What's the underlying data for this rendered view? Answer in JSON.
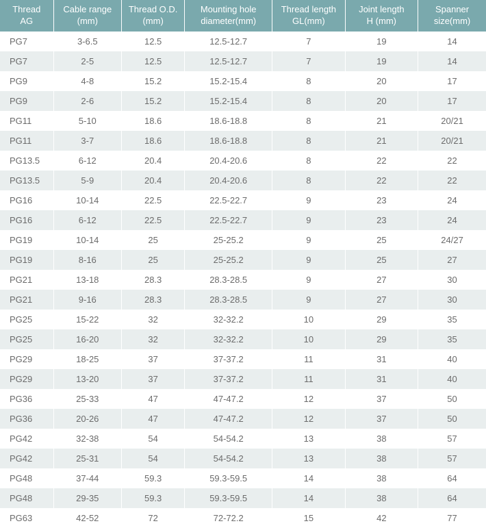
{
  "table": {
    "type": "table",
    "header_bg": "#7aa9ad",
    "header_fg": "#ffffff",
    "row_odd_bg": "#ffffff",
    "row_even_bg": "#e9eeee",
    "cell_fg": "#6b6b6b",
    "font_family": "Arial, Helvetica, sans-serif",
    "font_size_pt": 10,
    "columns": [
      {
        "line1": "Thread",
        "line2": "AG",
        "width_pct": 11,
        "align": "left"
      },
      {
        "line1": "Cable range",
        "line2": "(mm)",
        "width_pct": 14,
        "align": "center"
      },
      {
        "line1": "Thread O.D.",
        "line2": "(mm)",
        "width_pct": 13,
        "align": "center"
      },
      {
        "line1": "Mounting hole",
        "line2": "diameter(mm)",
        "width_pct": 18,
        "align": "center"
      },
      {
        "line1": "Thread length",
        "line2": "GL(mm)",
        "width_pct": 15,
        "align": "center"
      },
      {
        "line1": "Joint length",
        "line2": "H (mm)",
        "width_pct": 15,
        "align": "center"
      },
      {
        "line1": "Spanner",
        "line2": "size(mm)",
        "width_pct": 14,
        "align": "center"
      }
    ],
    "rows": [
      [
        "PG7",
        "3-6.5",
        "12.5",
        "12.5-12.7",
        "7",
        "19",
        "14"
      ],
      [
        "PG7",
        "2-5",
        "12.5",
        "12.5-12.7",
        "7",
        "19",
        "14"
      ],
      [
        "PG9",
        "4-8",
        "15.2",
        "15.2-15.4",
        "8",
        "20",
        "17"
      ],
      [
        "PG9",
        "2-6",
        "15.2",
        "15.2-15.4",
        "8",
        "20",
        "17"
      ],
      [
        "PG11",
        "5-10",
        "18.6",
        "18.6-18.8",
        "8",
        "21",
        "20/21"
      ],
      [
        "PG11",
        "3-7",
        "18.6",
        "18.6-18.8",
        "8",
        "21",
        "20/21"
      ],
      [
        "PG13.5",
        "6-12",
        "20.4",
        "20.4-20.6",
        "8",
        "22",
        "22"
      ],
      [
        "PG13.5",
        "5-9",
        "20.4",
        "20.4-20.6",
        "8",
        "22",
        "22"
      ],
      [
        "PG16",
        "10-14",
        "22.5",
        "22.5-22.7",
        "9",
        "23",
        "24"
      ],
      [
        "PG16",
        "6-12",
        "22.5",
        "22.5-22.7",
        "9",
        "23",
        "24"
      ],
      [
        "PG19",
        "10-14",
        "25",
        "25-25.2",
        "9",
        "25",
        "24/27"
      ],
      [
        "PG19",
        "8-16",
        "25",
        "25-25.2",
        "9",
        "25",
        "27"
      ],
      [
        "PG21",
        "13-18",
        "28.3",
        "28.3-28.5",
        "9",
        "27",
        "30"
      ],
      [
        "PG21",
        "9-16",
        "28.3",
        "28.3-28.5",
        "9",
        "27",
        "30"
      ],
      [
        "PG25",
        "15-22",
        "32",
        "32-32.2",
        "10",
        "29",
        "35"
      ],
      [
        "PG25",
        "16-20",
        "32",
        "32-32.2",
        "10",
        "29",
        "35"
      ],
      [
        "PG29",
        "18-25",
        "37",
        "37-37.2",
        "11",
        "31",
        "40"
      ],
      [
        "PG29",
        "13-20",
        "37",
        "37-37.2",
        "11",
        "31",
        "40"
      ],
      [
        "PG36",
        "25-33",
        "47",
        "47-47.2",
        "12",
        "37",
        "50"
      ],
      [
        "PG36",
        "20-26",
        "47",
        "47-47.2",
        "12",
        "37",
        "50"
      ],
      [
        "PG42",
        "32-38",
        "54",
        "54-54.2",
        "13",
        "38",
        "57"
      ],
      [
        "PG42",
        "25-31",
        "54",
        "54-54.2",
        "13",
        "38",
        "57"
      ],
      [
        "PG48",
        "37-44",
        "59.3",
        "59.3-59.5",
        "14",
        "38",
        "64"
      ],
      [
        "PG48",
        "29-35",
        "59.3",
        "59.3-59.5",
        "14",
        "38",
        "64"
      ],
      [
        "PG63",
        "42-52",
        "72",
        "72-72.2",
        "15",
        "42",
        "77"
      ]
    ]
  }
}
